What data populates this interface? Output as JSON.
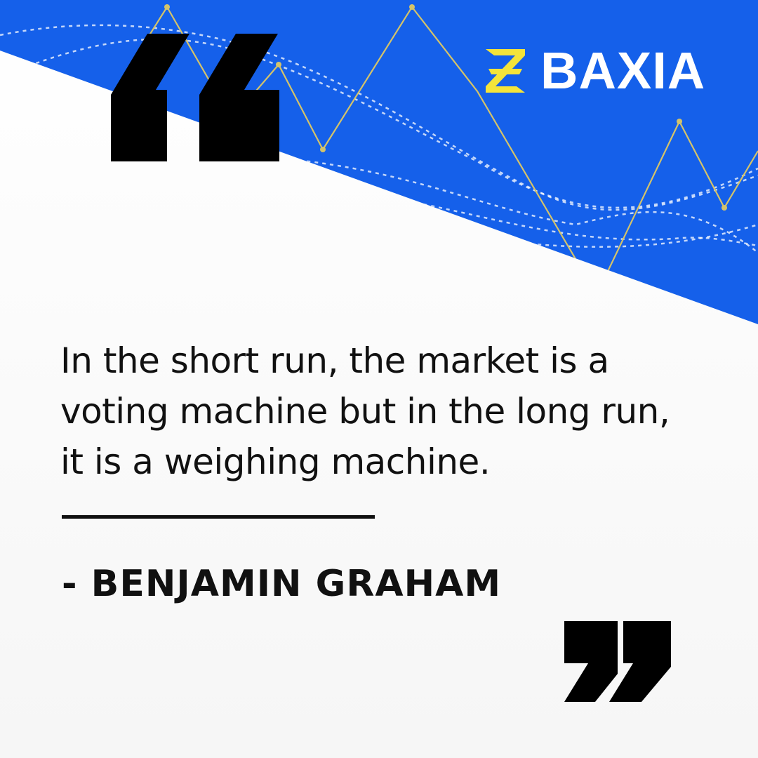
{
  "brand": {
    "name": "BAXIA",
    "colors": {
      "blue": "#1560EA",
      "yellow": "#F4E43A",
      "text": "#111111"
    }
  },
  "icons": [
    "baxia-logo-icon",
    "open-quote-icon",
    "close-quote-icon"
  ],
  "quote": {
    "lines": [
      "In the short run, the market is a",
      "voting machine but in the long run,",
      "it is a weighing machine."
    ],
    "author": "- BENJAMIN GRAHAM"
  }
}
